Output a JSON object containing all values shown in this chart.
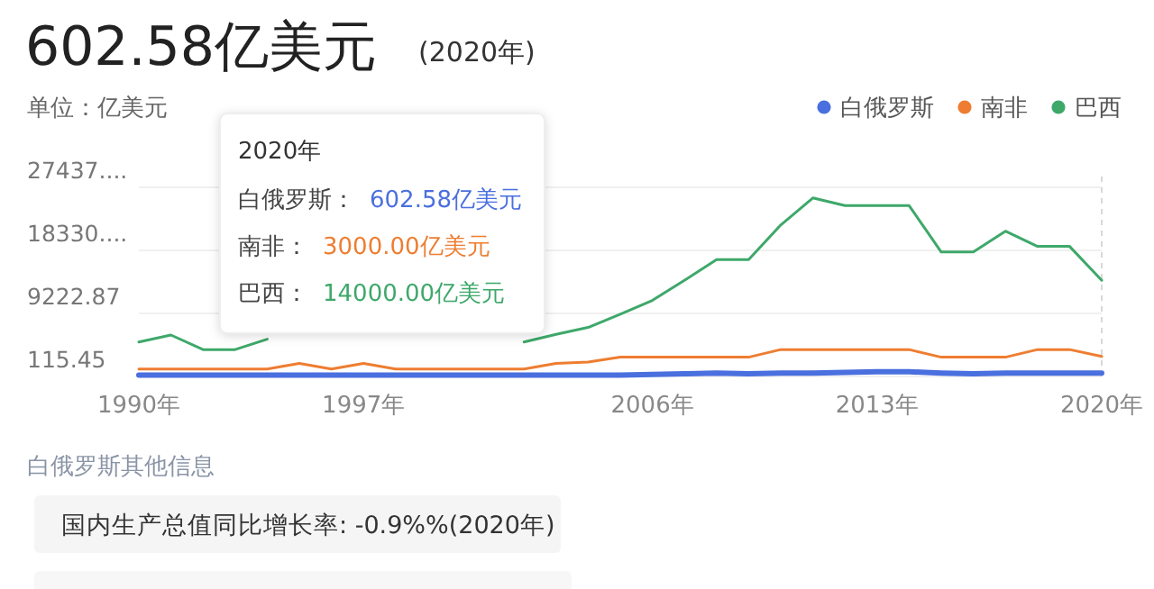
{
  "chart_data": {
    "type": "line",
    "title": "602.58亿美元",
    "subtitle": "(2020年)",
    "ylabel": "单位：亿美元",
    "x": [
      1990,
      1991,
      1992,
      1993,
      1994,
      1995,
      1996,
      1997,
      1998,
      1999,
      2000,
      2001,
      2002,
      2003,
      2004,
      2005,
      2006,
      2007,
      2008,
      2009,
      2010,
      2011,
      2012,
      2013,
      2014,
      2015,
      2016,
      2017,
      2018,
      2019,
      2020
    ],
    "series": [
      {
        "name": "白俄罗斯",
        "color": "#4a6fde",
        "values": [
          300,
          300,
          300,
          300,
          300,
          300,
          300,
          300,
          300,
          300,
          300,
          300,
          300,
          300,
          300,
          300,
          400,
          500,
          600,
          500,
          600,
          600,
          700,
          800,
          800,
          600,
          500,
          600,
          600,
          600,
          602.58
        ]
      },
      {
        "name": "南非",
        "color": "#ee7d31",
        "values": [
          1200,
          1200,
          1200,
          1200,
          1200,
          2000,
          1200,
          2000,
          1200,
          1200,
          1200,
          1200,
          1200,
          2000,
          2200,
          2900,
          2900,
          2900,
          2900,
          2900,
          4000,
          4000,
          4000,
          4000,
          4000,
          2900,
          2900,
          2900,
          4000,
          4000,
          3000
        ]
      },
      {
        "name": "巴西",
        "color": "#3ea86a",
        "values": [
          5100,
          6100,
          4000,
          4000,
          5500,
          null,
          null,
          null,
          null,
          null,
          null,
          null,
          5100,
          6200,
          7200,
          9100,
          11100,
          14000,
          17000,
          17000,
          22000,
          25900,
          24800,
          24800,
          24800,
          18100,
          18100,
          21100,
          18900,
          18900,
          14000
        ]
      }
    ],
    "xlim": [
      1990,
      2020
    ],
    "xticks": [
      {
        "value": 1990,
        "label": "1990年"
      },
      {
        "value": 1997,
        "label": "1997年"
      },
      {
        "value": 2006,
        "label": "2006年"
      },
      {
        "value": 2013,
        "label": "2013年"
      },
      {
        "value": 2020,
        "label": "2020年"
      }
    ],
    "ylim": [
      115.45,
      27437.71
    ],
    "yticks": [
      115.45,
      9222.87,
      {
        "value": 18330.29,
        "label": "18330...."
      },
      {
        "value": 27437.71,
        "label": "27437...."
      }
    ],
    "grid": "y",
    "legend": "top right",
    "marker": "none",
    "line_style": "solid",
    "ref_lines": [
      {
        "axis": "x",
        "value": 2020,
        "color": "#d8d8d8",
        "line_style": "dashed"
      }
    ],
    "annotations": [
      "2020年",
      "白俄罗斯：",
      "602.58亿美元",
      "南非：",
      "3000.00亿美元",
      "巴西：",
      "14000.00亿美元",
      "白俄罗斯其他信息",
      "国内生产总值同比增长率: -0.9%%(2020年)"
    ]
  }
}
